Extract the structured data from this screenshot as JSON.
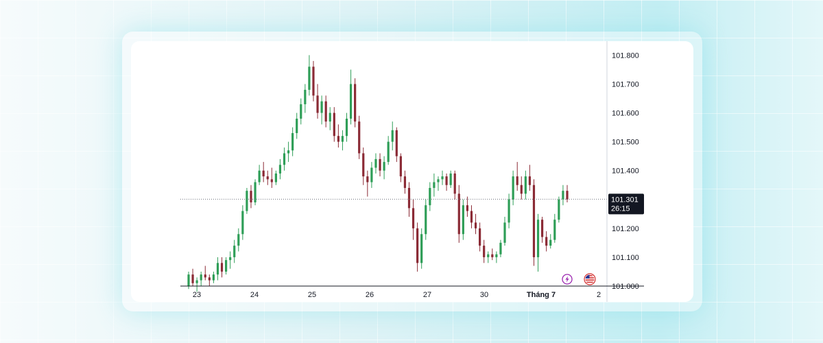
{
  "chart_data": {
    "type": "candlestick",
    "x_tick_labels": [
      "23",
      "24",
      "25",
      "26",
      "27",
      "30",
      "Tháng 7",
      "2"
    ],
    "y_tick_labels": [
      "101.800",
      "101.700",
      "101.600",
      "101.500",
      "101.400",
      "101.300",
      "101.200",
      "101.100",
      "101.000"
    ],
    "ylim": [
      101.0,
      101.82
    ],
    "current_price": "101.301",
    "countdown": "26:15",
    "colors": {
      "up": "#26a69a",
      "up_candle": "#2e9e57",
      "down": "#8b2a35",
      "axis_text": "#131722",
      "tag_bg": "#131722"
    },
    "icons": [
      "lightning-icon",
      "us-flag-icon"
    ],
    "series": [
      {
        "candles": [
          [
            101.0,
            101.05,
            100.99,
            101.04
          ],
          [
            101.04,
            101.06,
            101.0,
            101.01
          ],
          [
            101.01,
            101.03,
            100.98,
            101.02
          ],
          [
            101.02,
            101.05,
            101.0,
            101.04
          ],
          [
            101.04,
            101.07,
            101.02,
            101.03
          ],
          [
            101.03,
            101.04,
            101.0,
            101.02
          ],
          [
            101.02,
            101.05,
            101.01,
            101.04
          ],
          [
            101.04,
            101.1,
            101.02,
            101.08
          ],
          [
            101.08,
            101.1,
            101.03,
            101.05
          ],
          [
            101.05,
            101.1,
            101.04,
            101.09
          ],
          [
            101.09,
            101.12,
            101.06,
            101.1
          ],
          [
            101.1,
            101.16,
            101.08,
            101.14
          ],
          [
            101.14,
            101.2,
            101.12,
            101.18
          ],
          [
            101.18,
            101.28,
            101.16,
            101.26
          ],
          [
            101.26,
            101.34,
            101.25,
            101.33
          ],
          [
            101.33,
            101.35,
            101.27,
            101.29
          ],
          [
            101.29,
            101.37,
            101.28,
            101.36
          ],
          [
            101.36,
            101.42,
            101.35,
            101.4
          ],
          [
            101.4,
            101.43,
            101.36,
            101.38
          ],
          [
            101.38,
            101.4,
            101.35,
            101.37
          ],
          [
            101.37,
            101.41,
            101.34,
            101.36
          ],
          [
            101.36,
            101.4,
            101.35,
            101.39
          ],
          [
            101.39,
            101.44,
            101.37,
            101.42
          ],
          [
            101.42,
            101.48,
            101.4,
            101.46
          ],
          [
            101.46,
            101.5,
            101.43,
            101.47
          ],
          [
            101.47,
            101.55,
            101.45,
            101.53
          ],
          [
            101.53,
            101.6,
            101.51,
            101.58
          ],
          [
            101.58,
            101.65,
            101.56,
            101.63
          ],
          [
            101.63,
            101.7,
            101.6,
            101.68
          ],
          [
            101.68,
            101.8,
            101.66,
            101.76
          ],
          [
            101.76,
            101.78,
            101.64,
            101.66
          ],
          [
            101.66,
            101.7,
            101.58,
            101.6
          ],
          [
            101.6,
            101.66,
            101.56,
            101.64
          ],
          [
            101.64,
            101.66,
            101.55,
            101.57
          ],
          [
            101.57,
            101.62,
            101.54,
            101.6
          ],
          [
            101.6,
            101.62,
            101.5,
            101.52
          ],
          [
            101.52,
            101.56,
            101.48,
            101.5
          ],
          [
            101.5,
            101.54,
            101.47,
            101.52
          ],
          [
            101.52,
            101.6,
            101.5,
            101.58
          ],
          [
            101.58,
            101.75,
            101.56,
            101.7
          ],
          [
            101.7,
            101.72,
            101.55,
            101.57
          ],
          [
            101.57,
            101.59,
            101.44,
            101.46
          ],
          [
            101.46,
            101.48,
            101.35,
            101.38
          ],
          [
            101.38,
            101.4,
            101.31,
            101.36
          ],
          [
            101.36,
            101.43,
            101.34,
            101.41
          ],
          [
            101.41,
            101.46,
            101.39,
            101.44
          ],
          [
            101.44,
            101.46,
            101.38,
            101.4
          ],
          [
            101.4,
            101.45,
            101.37,
            101.43
          ],
          [
            101.43,
            101.52,
            101.42,
            101.5
          ],
          [
            101.5,
            101.57,
            101.47,
            101.54
          ],
          [
            101.54,
            101.55,
            101.43,
            101.45
          ],
          [
            101.45,
            101.46,
            101.36,
            101.38
          ],
          [
            101.38,
            101.4,
            101.32,
            101.34
          ],
          [
            101.34,
            101.36,
            101.24,
            101.27
          ],
          [
            101.27,
            101.3,
            101.16,
            101.2
          ],
          [
            101.2,
            101.22,
            101.05,
            101.08
          ],
          [
            101.08,
            101.2,
            101.06,
            101.18
          ],
          [
            101.18,
            101.3,
            101.16,
            101.28
          ],
          [
            101.28,
            101.36,
            101.26,
            101.34
          ],
          [
            101.34,
            101.39,
            101.31,
            101.36
          ],
          [
            101.36,
            101.38,
            101.33,
            101.37
          ],
          [
            101.37,
            101.4,
            101.35,
            101.38
          ],
          [
            101.38,
            101.39,
            101.33,
            101.35
          ],
          [
            101.35,
            101.4,
            101.34,
            101.39
          ],
          [
            101.39,
            101.4,
            101.3,
            101.32
          ],
          [
            101.32,
            101.35,
            101.15,
            101.18
          ],
          [
            101.18,
            101.3,
            101.16,
            101.28
          ],
          [
            101.28,
            101.31,
            101.24,
            101.26
          ],
          [
            101.26,
            101.28,
            101.2,
            101.22
          ],
          [
            101.22,
            101.25,
            101.18,
            101.2
          ],
          [
            101.2,
            101.22,
            101.12,
            101.14
          ],
          [
            101.14,
            101.16,
            101.08,
            101.1
          ],
          [
            101.1,
            101.12,
            101.08,
            101.11
          ],
          [
            101.11,
            101.13,
            101.09,
            101.1
          ],
          [
            101.1,
            101.12,
            101.08,
            101.11
          ],
          [
            101.11,
            101.16,
            101.1,
            101.15
          ],
          [
            101.15,
            101.24,
            101.14,
            101.22
          ],
          [
            101.22,
            101.32,
            101.2,
            101.3
          ],
          [
            101.3,
            101.4,
            101.28,
            101.38
          ],
          [
            101.38,
            101.43,
            101.33,
            101.35
          ],
          [
            101.35,
            101.38,
            101.3,
            101.32
          ],
          [
            101.32,
            101.4,
            101.3,
            101.38
          ],
          [
            101.38,
            101.42,
            101.33,
            101.35
          ],
          [
            101.35,
            101.37,
            101.07,
            101.1
          ],
          [
            101.1,
            101.25,
            101.05,
            101.23
          ],
          [
            101.23,
            101.24,
            101.15,
            101.17
          ],
          [
            101.17,
            101.19,
            101.12,
            101.14
          ],
          [
            101.14,
            101.18,
            101.13,
            101.16
          ],
          [
            101.16,
            101.25,
            101.15,
            101.23
          ],
          [
            101.23,
            101.31,
            101.22,
            101.3
          ],
          [
            101.3,
            101.35,
            101.28,
            101.33
          ],
          [
            101.33,
            101.35,
            101.29,
            101.3
          ]
        ]
      }
    ]
  }
}
